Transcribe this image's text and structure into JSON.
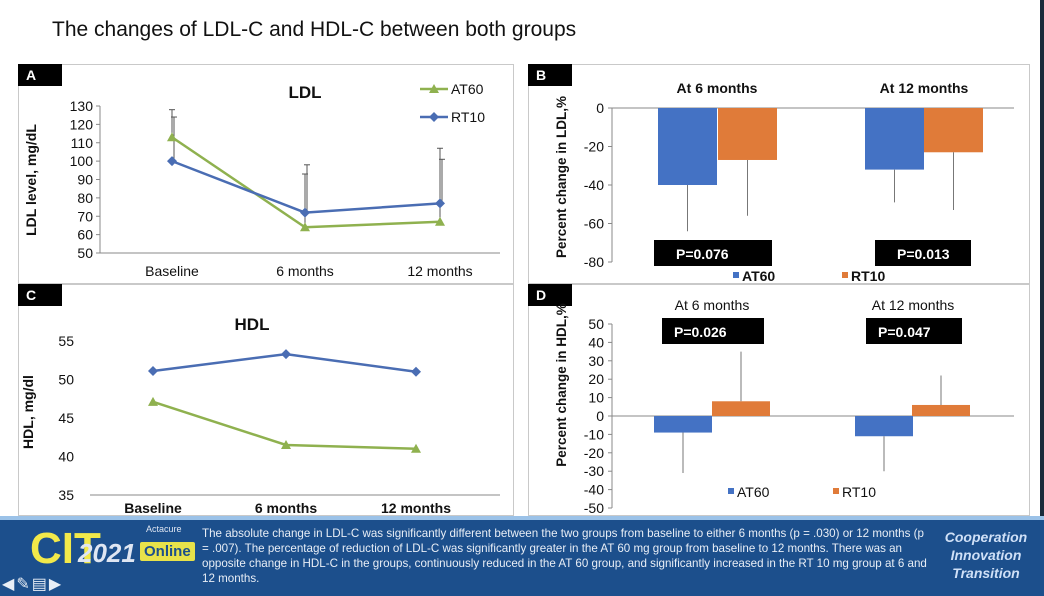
{
  "slide_title": "The changes of LDL-C and HDL-C between both groups",
  "panels": {
    "A": "A",
    "B": "B",
    "C": "C",
    "D": "D"
  },
  "colors": {
    "at60": "#8fb14f",
    "rt10": "#4a6db3",
    "bar_at60": "#4472c4",
    "bar_rt10": "#e07b39"
  },
  "chart_data": [
    {
      "panel": "A",
      "type": "line",
      "title": "LDL",
      "ylabel": "LDL level, mg/dL",
      "categories": [
        "Baseline",
        "6 months",
        "12 months"
      ],
      "ylim": [
        50,
        130
      ],
      "yticks": [
        "50",
        "60",
        "70",
        "80",
        "90",
        "100",
        "110",
        "120",
        "130"
      ],
      "series": [
        {
          "name": "AT60",
          "values": [
            113,
            64,
            67
          ],
          "err_upper": [
            128,
            93,
            107
          ]
        },
        {
          "name": "RT10",
          "values": [
            100,
            72,
            77
          ],
          "err_upper": [
            124,
            98,
            101
          ]
        }
      ]
    },
    {
      "panel": "B",
      "type": "bar",
      "ylabel": "Percent change in LDL,%",
      "groups": [
        "At 6 months",
        "At 12 months"
      ],
      "ylim": [
        -80,
        0
      ],
      "yticks": [
        "0",
        "-20",
        "-40",
        "-60",
        "-80"
      ],
      "series": [
        {
          "name": "AT60",
          "values": [
            -40,
            -32
          ],
          "err_lower": [
            -64,
            -49
          ]
        },
        {
          "name": "RT10",
          "values": [
            -27,
            -23
          ],
          "err_lower": [
            -56,
            -53
          ]
        }
      ],
      "p_values": [
        "P=0.076",
        "P=0.013"
      ]
    },
    {
      "panel": "C",
      "type": "line",
      "title": "HDL",
      "ylabel": "HDL, mg/dl",
      "categories": [
        "Baseline",
        "6 months",
        "12 months"
      ],
      "ylim": [
        35,
        55
      ],
      "yticks": [
        "35",
        "40",
        "45",
        "50",
        "55"
      ],
      "series": [
        {
          "name": "RT10",
          "values": [
            51.1,
            53.3,
            51.0
          ]
        },
        {
          "name": "AT60",
          "values": [
            47.1,
            41.5,
            41.0
          ]
        }
      ]
    },
    {
      "panel": "D",
      "type": "bar",
      "ylabel": "Percent change in HDL,%",
      "groups": [
        "At 6 months",
        "At 12 months"
      ],
      "ylim": [
        -50,
        50
      ],
      "yticks": [
        "50",
        "40",
        "30",
        "20",
        "10",
        "0",
        "-10",
        "-20",
        "-30",
        "-40",
        "-50"
      ],
      "series": [
        {
          "name": "AT60",
          "values": [
            -9,
            -11
          ],
          "err_lower": [
            -31,
            -30
          ]
        },
        {
          "name": "RT10",
          "values": [
            8,
            6
          ],
          "err_upper": [
            35,
            22
          ]
        }
      ],
      "p_values": [
        "P=0.026",
        "P=0.047"
      ]
    }
  ],
  "footer": {
    "logo_letters": "CIT",
    "logo_year": "2021",
    "logo_online": "Online",
    "logo_small": "Actacure",
    "summary": "The absolute change in LDL-C was significantly different between the two groups from baseline to either 6 months (p = .030) or 12 months (p = .007). The percentage of reduction of LDL-C was significantly greater in the AT 60 mg group from baseline to 12 months. There was an opposite change in HDL-C in the groups, continuously reduced in the AT 60 group, and significantly increased in the RT 10 mg group at 6 and 12 months.",
    "tagline": [
      "Cooperation",
      "Innovation",
      "Transition"
    ]
  }
}
